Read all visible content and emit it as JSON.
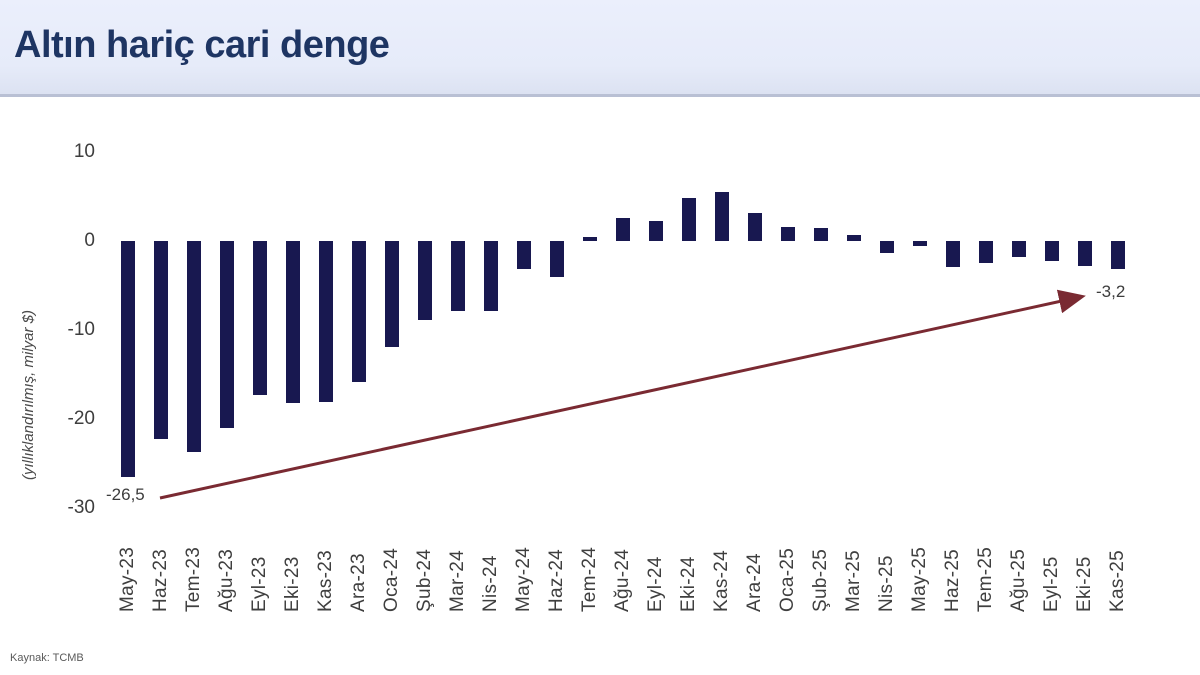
{
  "header": {
    "title": "Altın hariç cari denge"
  },
  "source": {
    "label": "Kaynak: TCMB"
  },
  "colors": {
    "bar": "#181850",
    "arrow": "#7a2a32",
    "title_text": "#1e3563",
    "header_bg": "#e6ebf9",
    "axis_text": "#3e3e3e"
  },
  "chart_data": {
    "type": "bar",
    "title": "Altın hariç cari denge",
    "xlabel": "",
    "ylabel": "(yıllıklandırılmış, milyar $)",
    "ylim": [
      -30,
      10
    ],
    "yticks": [
      10,
      0,
      -10,
      -20,
      -30
    ],
    "grid": false,
    "legend": false,
    "categories": [
      "May-23",
      "Haz-23",
      "Tem-23",
      "Ağu-23",
      "Eyl-23",
      "Eki-23",
      "Kas-23",
      "Ara-23",
      "Oca-24",
      "Şub-24",
      "Mar-24",
      "Nis-24",
      "May-24",
      "Haz-24",
      "Tem-24",
      "Ağu-24",
      "Eyl-24",
      "Eki-24",
      "Kas-24",
      "Ara-24",
      "Oca-25",
      "Şub-25",
      "Mar-25",
      "Nis-25",
      "May-25",
      "Haz-25",
      "Tem-25",
      "Ağu-25",
      "Eyl-25",
      "Eki-25",
      "Kas-25"
    ],
    "values": [
      -26.5,
      -22.2,
      -23.7,
      -21.0,
      -17.3,
      -18.2,
      -18.1,
      -15.8,
      -11.9,
      -8.9,
      -7.9,
      -7.9,
      -3.1,
      -4.1,
      0.5,
      2.6,
      2.3,
      4.8,
      5.5,
      3.2,
      1.6,
      1.5,
      0.7,
      -1.4,
      -0.6,
      -2.9,
      -2.5,
      -1.8,
      -2.3,
      -2.8,
      -3.2
    ],
    "annotations": [
      {
        "text": "-26,5",
        "category": "May-23",
        "value": -26.5
      },
      {
        "text": "-3,2",
        "category": "Kas-25",
        "value": -3.2
      }
    ],
    "trend_arrow": {
      "from_category": "May-23",
      "to_category": "Kas-25",
      "direction": "up-right"
    }
  }
}
